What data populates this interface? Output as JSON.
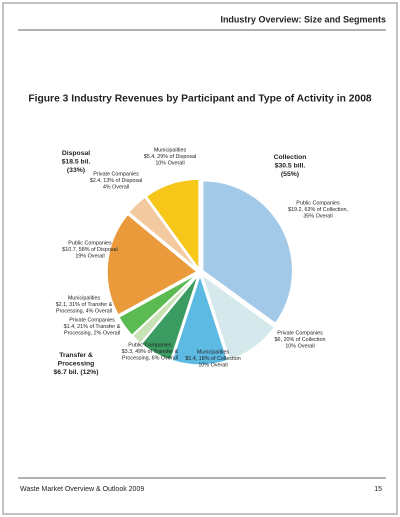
{
  "header": {
    "title": "Industry Overview: Size and Segments"
  },
  "chart_data": {
    "type": "pie",
    "title": "Figure 3 Industry Revenues by Participant and Type of Activity in 2008",
    "values": [
      35,
      10,
      10,
      6,
      2,
      4,
      19,
      4,
      10
    ],
    "value_labels": [
      [
        "Public Companies",
        "$19.2, 63% of Collection,",
        "35% Overall"
      ],
      [
        "Private Companies",
        "$6, 20% of Collection",
        "10% Overall"
      ],
      [
        "Municipalities",
        "$5.4, 18% of Collection",
        "10% Overall"
      ],
      [
        "Public Companies",
        "$3.3, 49% of  Transfer &",
        "Processing, 6% Overall"
      ],
      [
        "Private Companies",
        "$1.4, 21% of Transfer &",
        "Processing, 2% Overall"
      ],
      [
        "Municipalities",
        "$2.1, 31% of Transfer &",
        "Processing, 4% Overall"
      ],
      [
        "Public Companies",
        "$10.7, 58% of Disposal",
        "19% Overall"
      ],
      [
        "Private Companies",
        "$2.4, 13% of Disposal",
        "4% Overall"
      ],
      [
        "Municipalities",
        "$5.4, 29% of Disposal",
        "10% Overall"
      ]
    ],
    "colors": [
      "#a3c9e8",
      "#d5e9ec",
      "#5dbbe3",
      "#3b9c62",
      "#c7e3b5",
      "#5cba52",
      "#ea9a3a",
      "#f3c9a0",
      "#f6c618"
    ],
    "groups": [
      [
        "Collection",
        "$30.5 bill.",
        "(55%)"
      ],
      [
        "Transfer &",
        "Processing",
        "$6.7 bil. (12%)"
      ],
      [
        "Disposal",
        "$18.5 bil.",
        "(33%)"
      ]
    ]
  },
  "footer": {
    "left": "Waste Market Overview & Outlook 2009",
    "page": "15"
  }
}
